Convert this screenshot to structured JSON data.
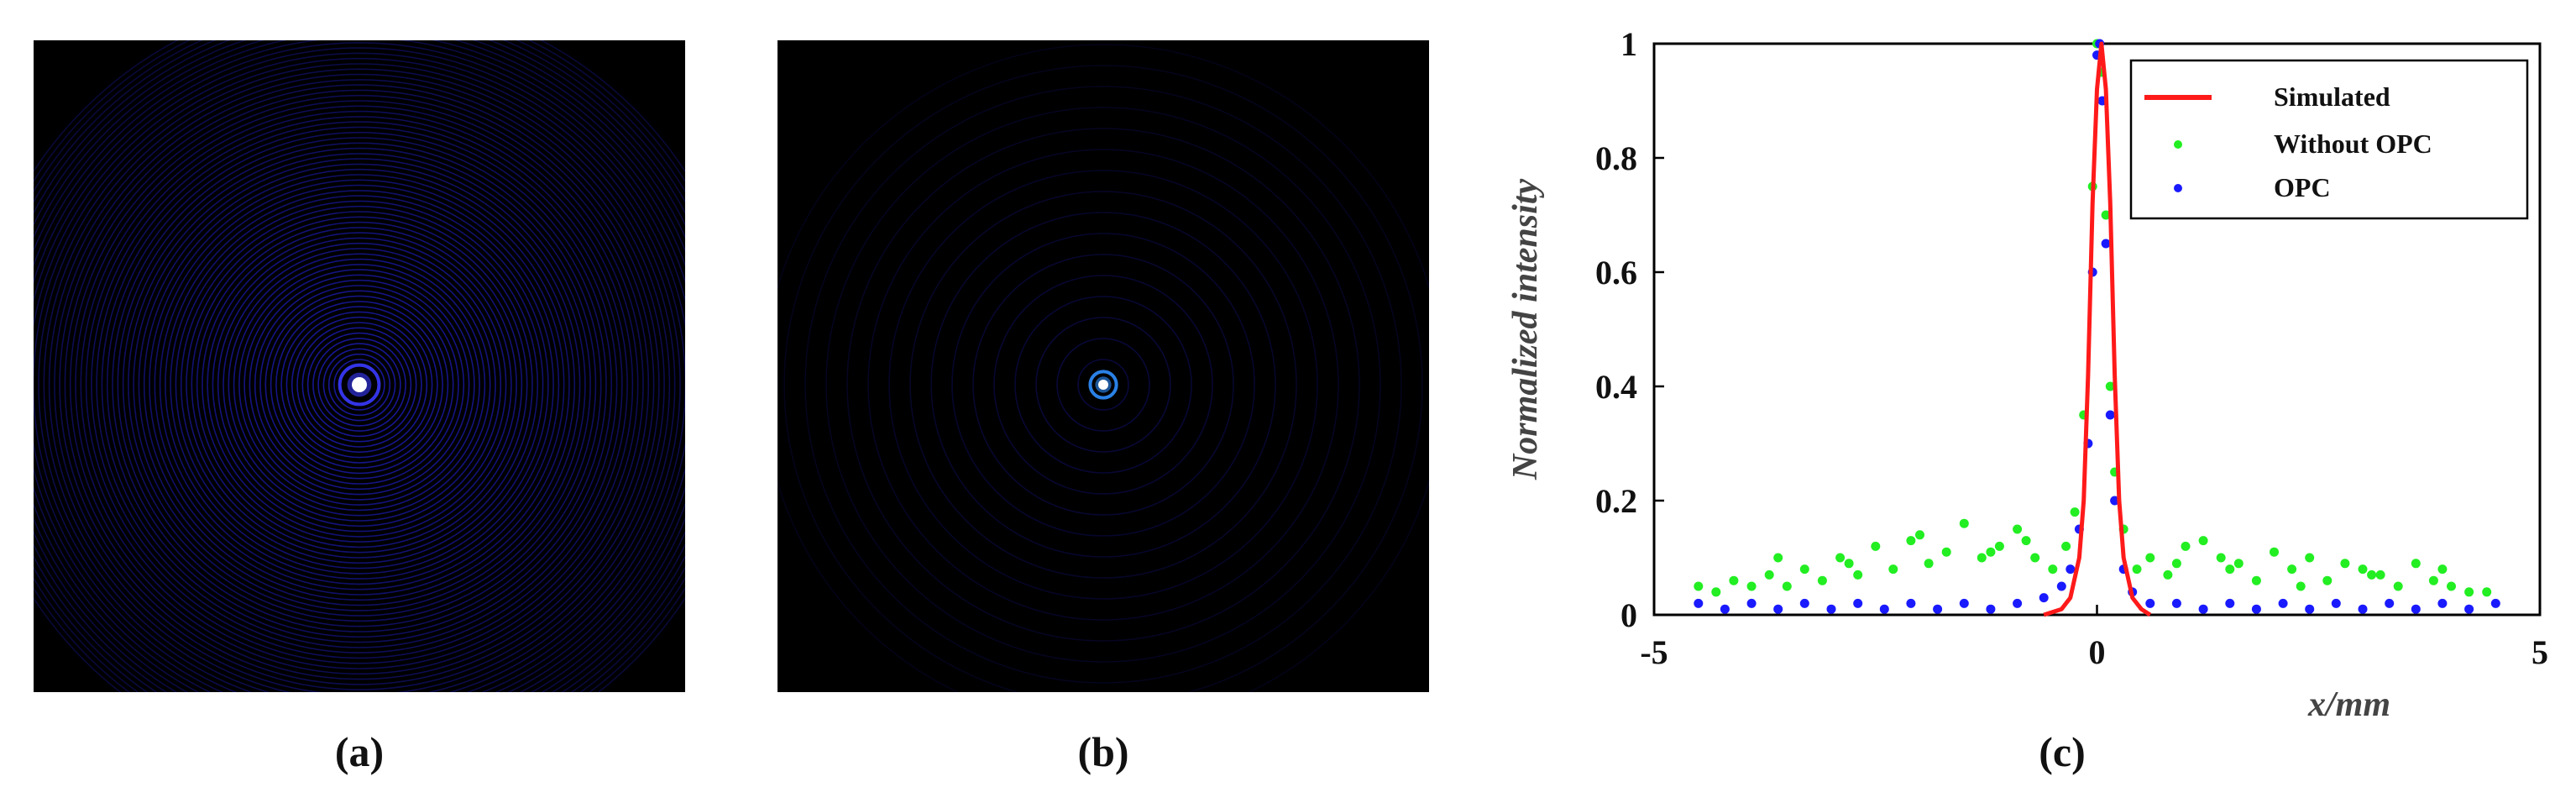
{
  "figure": {
    "label_a": "(a)",
    "label_b": "(b)",
    "label_c": "(c)"
  },
  "colors": {
    "simulated": "#ff1a1a",
    "without_opc": "#22ee22",
    "opc": "#1a1aff",
    "ring_a": "#1f1fc8",
    "ring_b": "#1818a8",
    "spot": "#ffffff"
  },
  "chart_data": {
    "type": "scatter",
    "title": "",
    "xlabel": "x/mm",
    "ylabel": "Normalized intensity",
    "xlim": [
      -5,
      5
    ],
    "ylim": [
      0,
      1
    ],
    "xticks": [
      "-5",
      "0",
      "5"
    ],
    "yticks": [
      "0",
      "0.2",
      "0.4",
      "0.6",
      "0.8",
      "1"
    ],
    "grid": false,
    "legend_position": "top-right",
    "series": [
      {
        "name": "Simulated",
        "kind": "line",
        "x": [
          -0.6,
          -0.4,
          -0.3,
          -0.2,
          -0.15,
          -0.1,
          -0.05,
          0.0,
          0.05,
          0.1,
          0.15,
          0.2,
          0.25,
          0.3,
          0.4,
          0.5,
          0.6
        ],
        "y": [
          0.0,
          0.01,
          0.03,
          0.1,
          0.2,
          0.42,
          0.72,
          0.92,
          1.0,
          0.92,
          0.72,
          0.42,
          0.2,
          0.1,
          0.03,
          0.01,
          0.0
        ]
      },
      {
        "name": "Without OPC",
        "kind": "points",
        "x": [
          -4.5,
          -4.3,
          -4.1,
          -3.9,
          -3.7,
          -3.5,
          -3.3,
          -3.1,
          -2.9,
          -2.7,
          -2.5,
          -2.3,
          -2.1,
          -1.9,
          -1.7,
          -1.5,
          -1.3,
          -1.1,
          -0.9,
          -0.7,
          -0.5,
          -0.35,
          -0.25,
          -0.15,
          -0.05,
          0.0,
          0.05,
          0.1,
          0.15,
          0.2,
          0.3,
          0.45,
          0.6,
          0.8,
          1.0,
          1.2,
          1.4,
          1.6,
          1.8,
          2.0,
          2.2,
          2.4,
          2.6,
          2.8,
          3.0,
          3.2,
          3.4,
          3.6,
          3.8,
          4.0,
          4.2,
          4.4,
          -3.6,
          -2.8,
          -2.0,
          -1.2,
          -0.8,
          0.9,
          1.5,
          2.3,
          3.1,
          3.9
        ],
        "y": [
          0.05,
          0.04,
          0.06,
          0.05,
          0.07,
          0.05,
          0.08,
          0.06,
          0.1,
          0.07,
          0.12,
          0.08,
          0.13,
          0.09,
          0.11,
          0.16,
          0.1,
          0.12,
          0.15,
          0.1,
          0.08,
          0.12,
          0.18,
          0.35,
          0.75,
          1.0,
          0.95,
          0.7,
          0.4,
          0.25,
          0.15,
          0.08,
          0.1,
          0.07,
          0.12,
          0.13,
          0.1,
          0.09,
          0.06,
          0.11,
          0.08,
          0.1,
          0.06,
          0.09,
          0.08,
          0.07,
          0.05,
          0.09,
          0.06,
          0.05,
          0.04,
          0.04,
          0.1,
          0.09,
          0.14,
          0.11,
          0.13,
          0.09,
          0.08,
          0.05,
          0.07,
          0.08
        ]
      },
      {
        "name": "OPC",
        "kind": "points",
        "x": [
          -4.5,
          -4.2,
          -3.9,
          -3.6,
          -3.3,
          -3.0,
          -2.7,
          -2.4,
          -2.1,
          -1.8,
          -1.5,
          -1.2,
          -0.9,
          -0.6,
          -0.4,
          -0.3,
          -0.2,
          -0.1,
          -0.05,
          0.0,
          0.03,
          0.06,
          0.1,
          0.15,
          0.2,
          0.3,
          0.4,
          0.6,
          0.9,
          1.2,
          1.5,
          1.8,
          2.1,
          2.4,
          2.7,
          3.0,
          3.3,
          3.6,
          3.9,
          4.2,
          4.5
        ],
        "y": [
          0.02,
          0.01,
          0.02,
          0.01,
          0.02,
          0.01,
          0.02,
          0.01,
          0.02,
          0.01,
          0.02,
          0.01,
          0.02,
          0.03,
          0.05,
          0.08,
          0.15,
          0.3,
          0.6,
          0.98,
          1.0,
          0.9,
          0.65,
          0.35,
          0.2,
          0.08,
          0.04,
          0.02,
          0.02,
          0.01,
          0.02,
          0.01,
          0.02,
          0.01,
          0.02,
          0.01,
          0.02,
          0.01,
          0.02,
          0.01,
          0.02
        ]
      }
    ]
  }
}
